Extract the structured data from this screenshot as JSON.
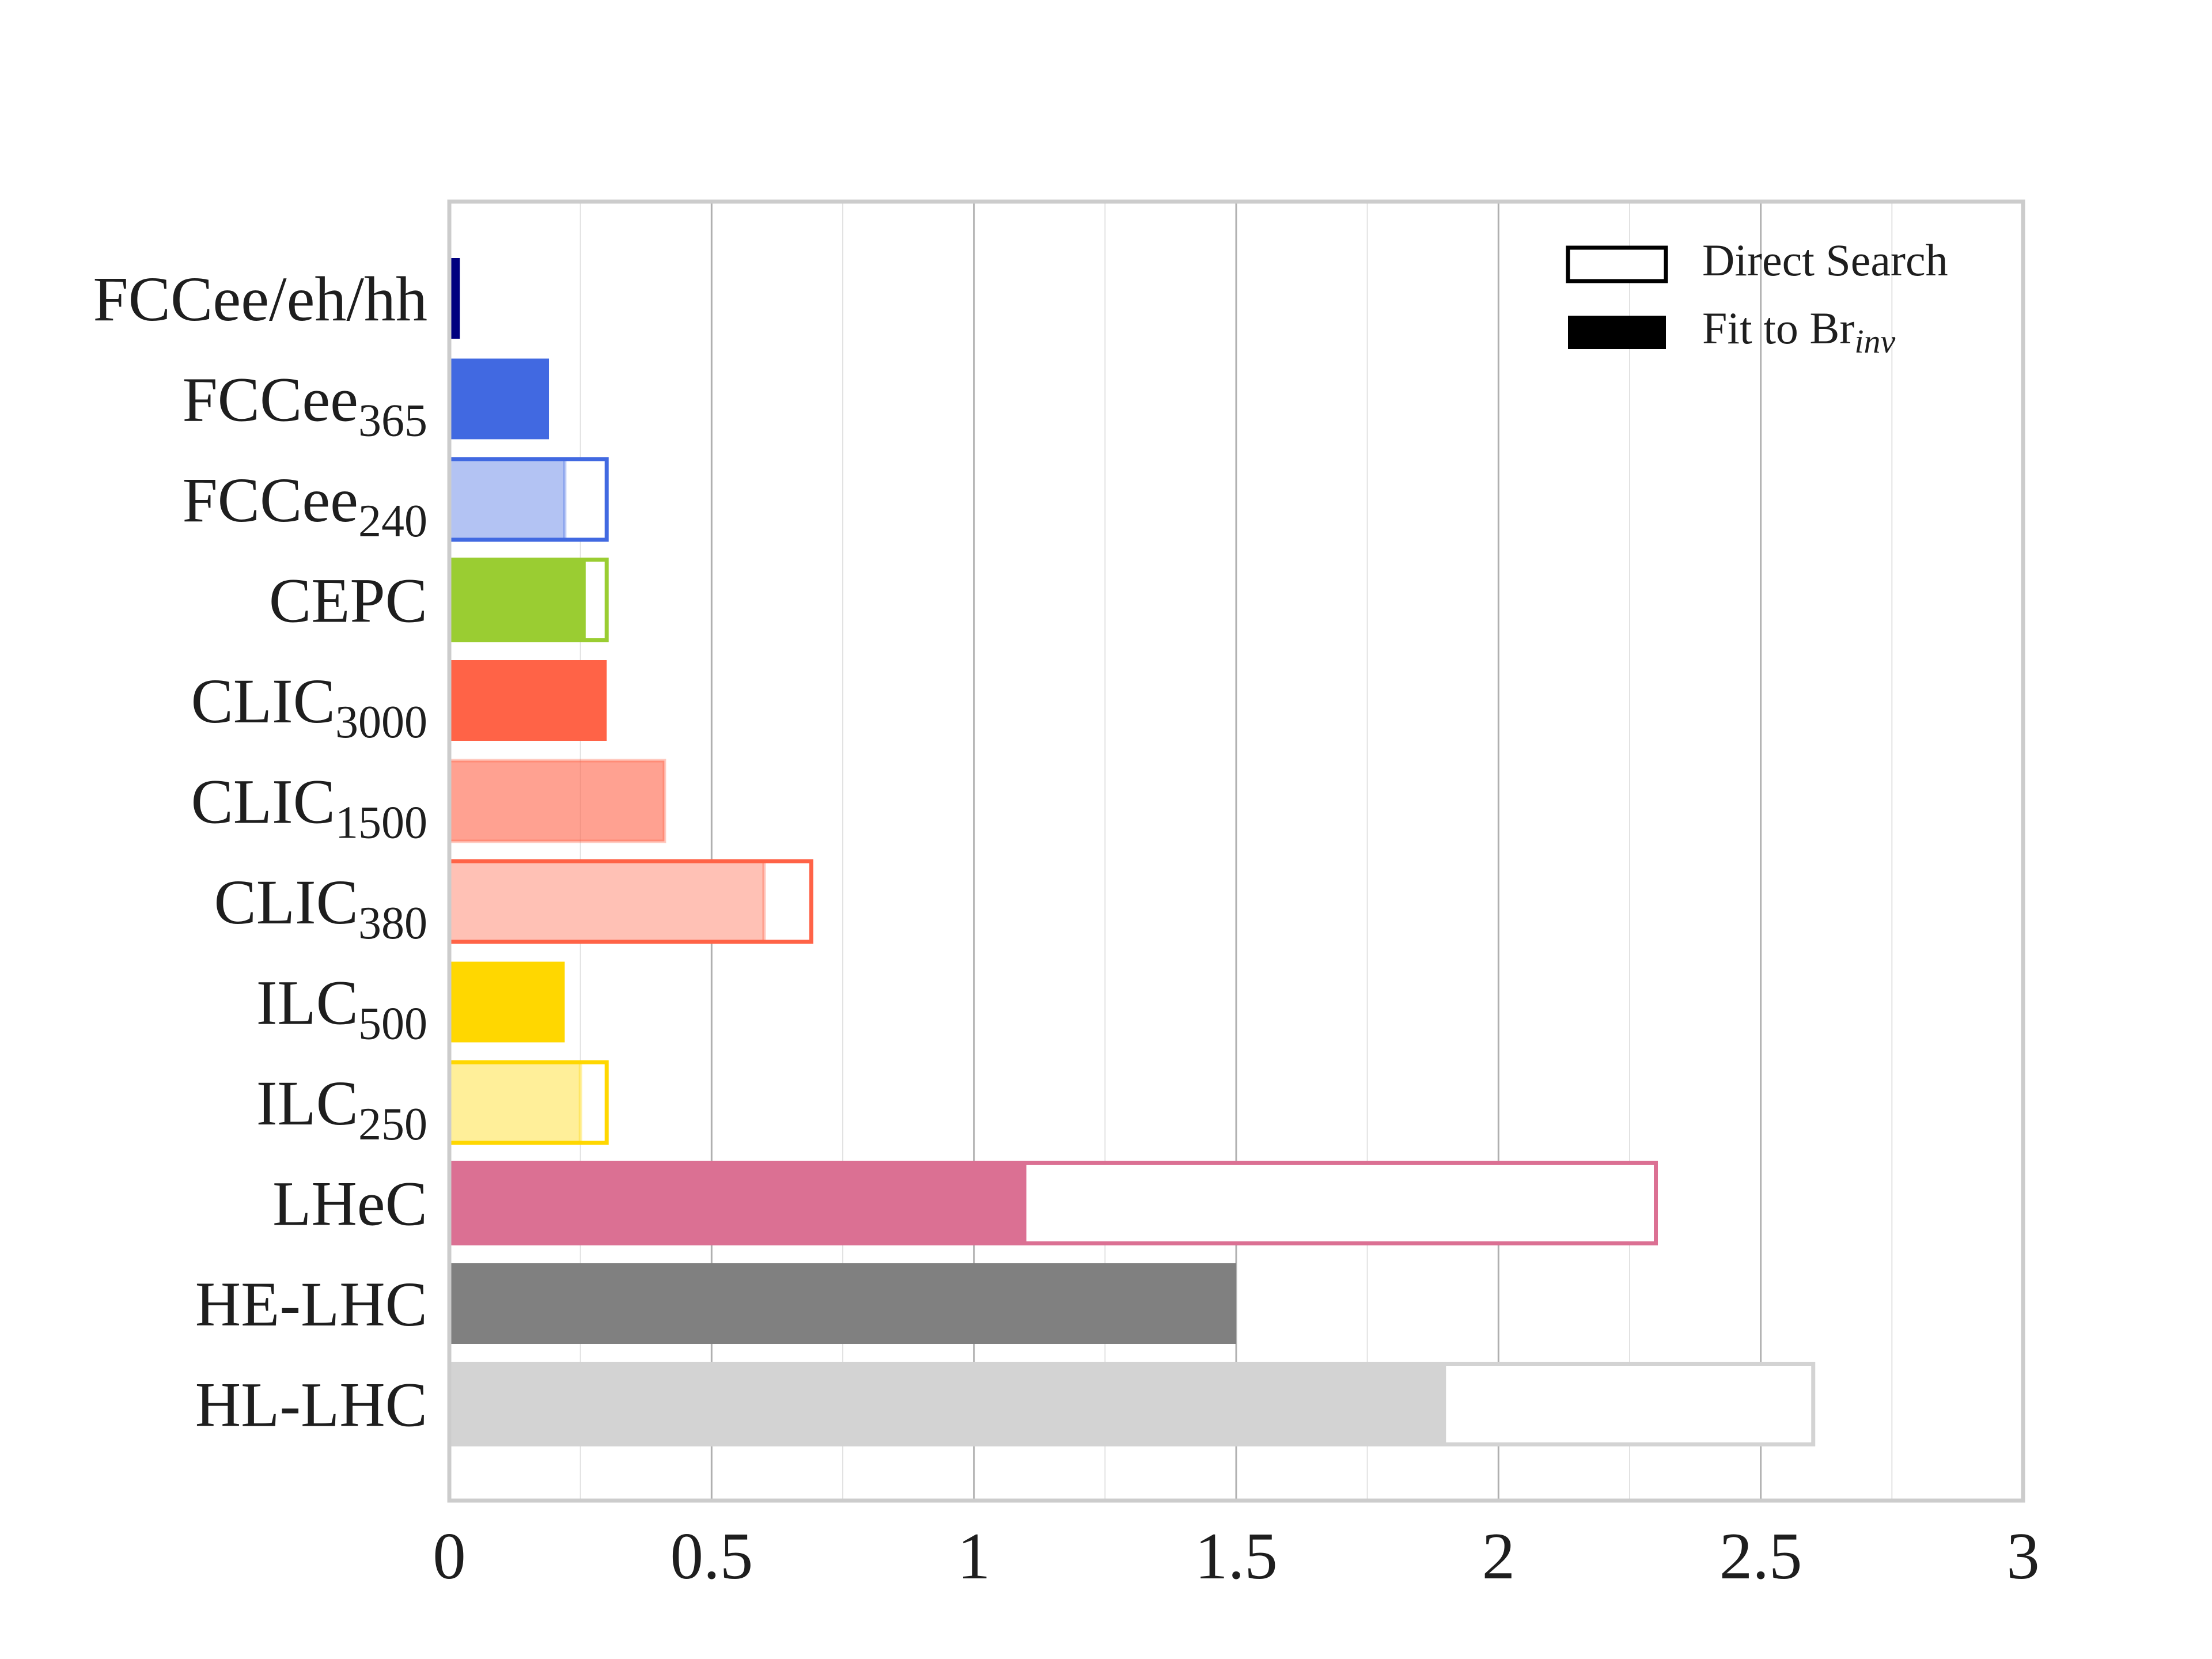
{
  "chart_data": {
    "type": "bar",
    "orientation": "horizontal",
    "title": "",
    "xlabel": "",
    "ylabel": "",
    "xlim": [
      0,
      3
    ],
    "x_ticks": [
      0,
      0.5,
      1,
      1.5,
      2,
      2.5,
      3
    ],
    "x_tick_labels": [
      "0",
      "0.5",
      "1",
      "1.5",
      "2",
      "2.5",
      "3"
    ],
    "grid": "vertical",
    "legend_position": "top-right",
    "legend": [
      {
        "key": "direct",
        "label": "Direct Search",
        "style": "outline"
      },
      {
        "key": "fit",
        "label": "Fit to Br",
        "sub": "inv",
        "style": "filled"
      }
    ],
    "categories": [
      {
        "name": "FCCee/eh/hh",
        "sub": "",
        "fit": 0.02,
        "direct": null,
        "color": "#00007f",
        "fill_opacity": 1.0
      },
      {
        "name": "FCCee",
        "sub": "365",
        "fit": 0.19,
        "direct": null,
        "color": "#4169e1",
        "fill_opacity": 1.0
      },
      {
        "name": "FCCee",
        "sub": "240",
        "fit": 0.22,
        "direct": 0.3,
        "color": "#4169e1",
        "fill_opacity": 0.4
      },
      {
        "name": "CEPC",
        "sub": "",
        "fit": 0.26,
        "direct": 0.3,
        "color": "#9acd32",
        "fill_opacity": 1.0
      },
      {
        "name": "CLIC",
        "sub": "3000",
        "fit": 0.3,
        "direct": null,
        "color": "#ff6347",
        "fill_opacity": 1.0
      },
      {
        "name": "CLIC",
        "sub": "1500",
        "fit": 0.41,
        "direct": null,
        "color": "#ff6347",
        "fill_opacity": 0.6
      },
      {
        "name": "CLIC",
        "sub": "380",
        "fit": 0.6,
        "direct": 0.69,
        "color": "#ff6347",
        "fill_opacity": 0.4
      },
      {
        "name": "ILC",
        "sub": "500",
        "fit": 0.22,
        "direct": null,
        "color": "#ffd700",
        "fill_opacity": 1.0
      },
      {
        "name": "ILC",
        "sub": "250",
        "fit": 0.25,
        "direct": 0.3,
        "color": "#ffd700",
        "fill_opacity": 0.4
      },
      {
        "name": "LHeC",
        "sub": "",
        "fit": 1.1,
        "direct": 2.3,
        "color": "#db7093",
        "fill_opacity": 1.0
      },
      {
        "name": "HE-LHC",
        "sub": "",
        "fit": 1.5,
        "direct": null,
        "color": "#808080",
        "fill_opacity": 1.0
      },
      {
        "name": "HL-LHC",
        "sub": "",
        "fit": 1.9,
        "direct": 2.6,
        "color": "#d3d3d3",
        "fill_opacity": 1.0
      }
    ]
  }
}
